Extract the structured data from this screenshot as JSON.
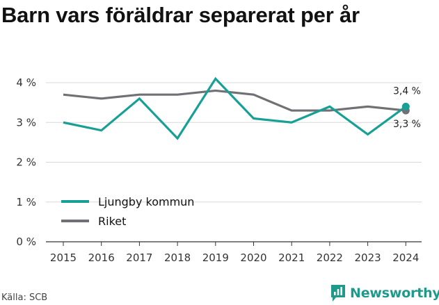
{
  "chart_data": {
    "type": "line",
    "title": "Barn vars föräldrar separerat per år",
    "x": [
      "2015",
      "2016",
      "2017",
      "2018",
      "2019",
      "2020",
      "2021",
      "2022",
      "2023",
      "2024"
    ],
    "series": [
      {
        "name": "Ljungby kommun",
        "color": "#18a096",
        "values": [
          3.0,
          2.8,
          3.6,
          2.6,
          4.1,
          3.1,
          3.0,
          3.4,
          2.7,
          3.4
        ],
        "end_label": "3,4 %"
      },
      {
        "name": "Riket",
        "color": "#707075",
        "values": [
          3.7,
          3.6,
          3.7,
          3.7,
          3.8,
          3.7,
          3.3,
          3.3,
          3.4,
          3.3
        ],
        "end_label": "3,3 %"
      }
    ],
    "yticks": [
      0,
      1,
      2,
      3,
      4
    ],
    "ytick_labels": [
      "0 %",
      "1 %",
      "2 %",
      "3 %",
      "4 %"
    ],
    "ylim": [
      0,
      4.5
    ],
    "grid": true,
    "legend_position": "lower-left"
  },
  "footer": {
    "source": "Källa: SCB",
    "brand": "Newsworthy",
    "brand_color": "#1f9a8a",
    "brand_icon": "bar-chart-icon"
  }
}
